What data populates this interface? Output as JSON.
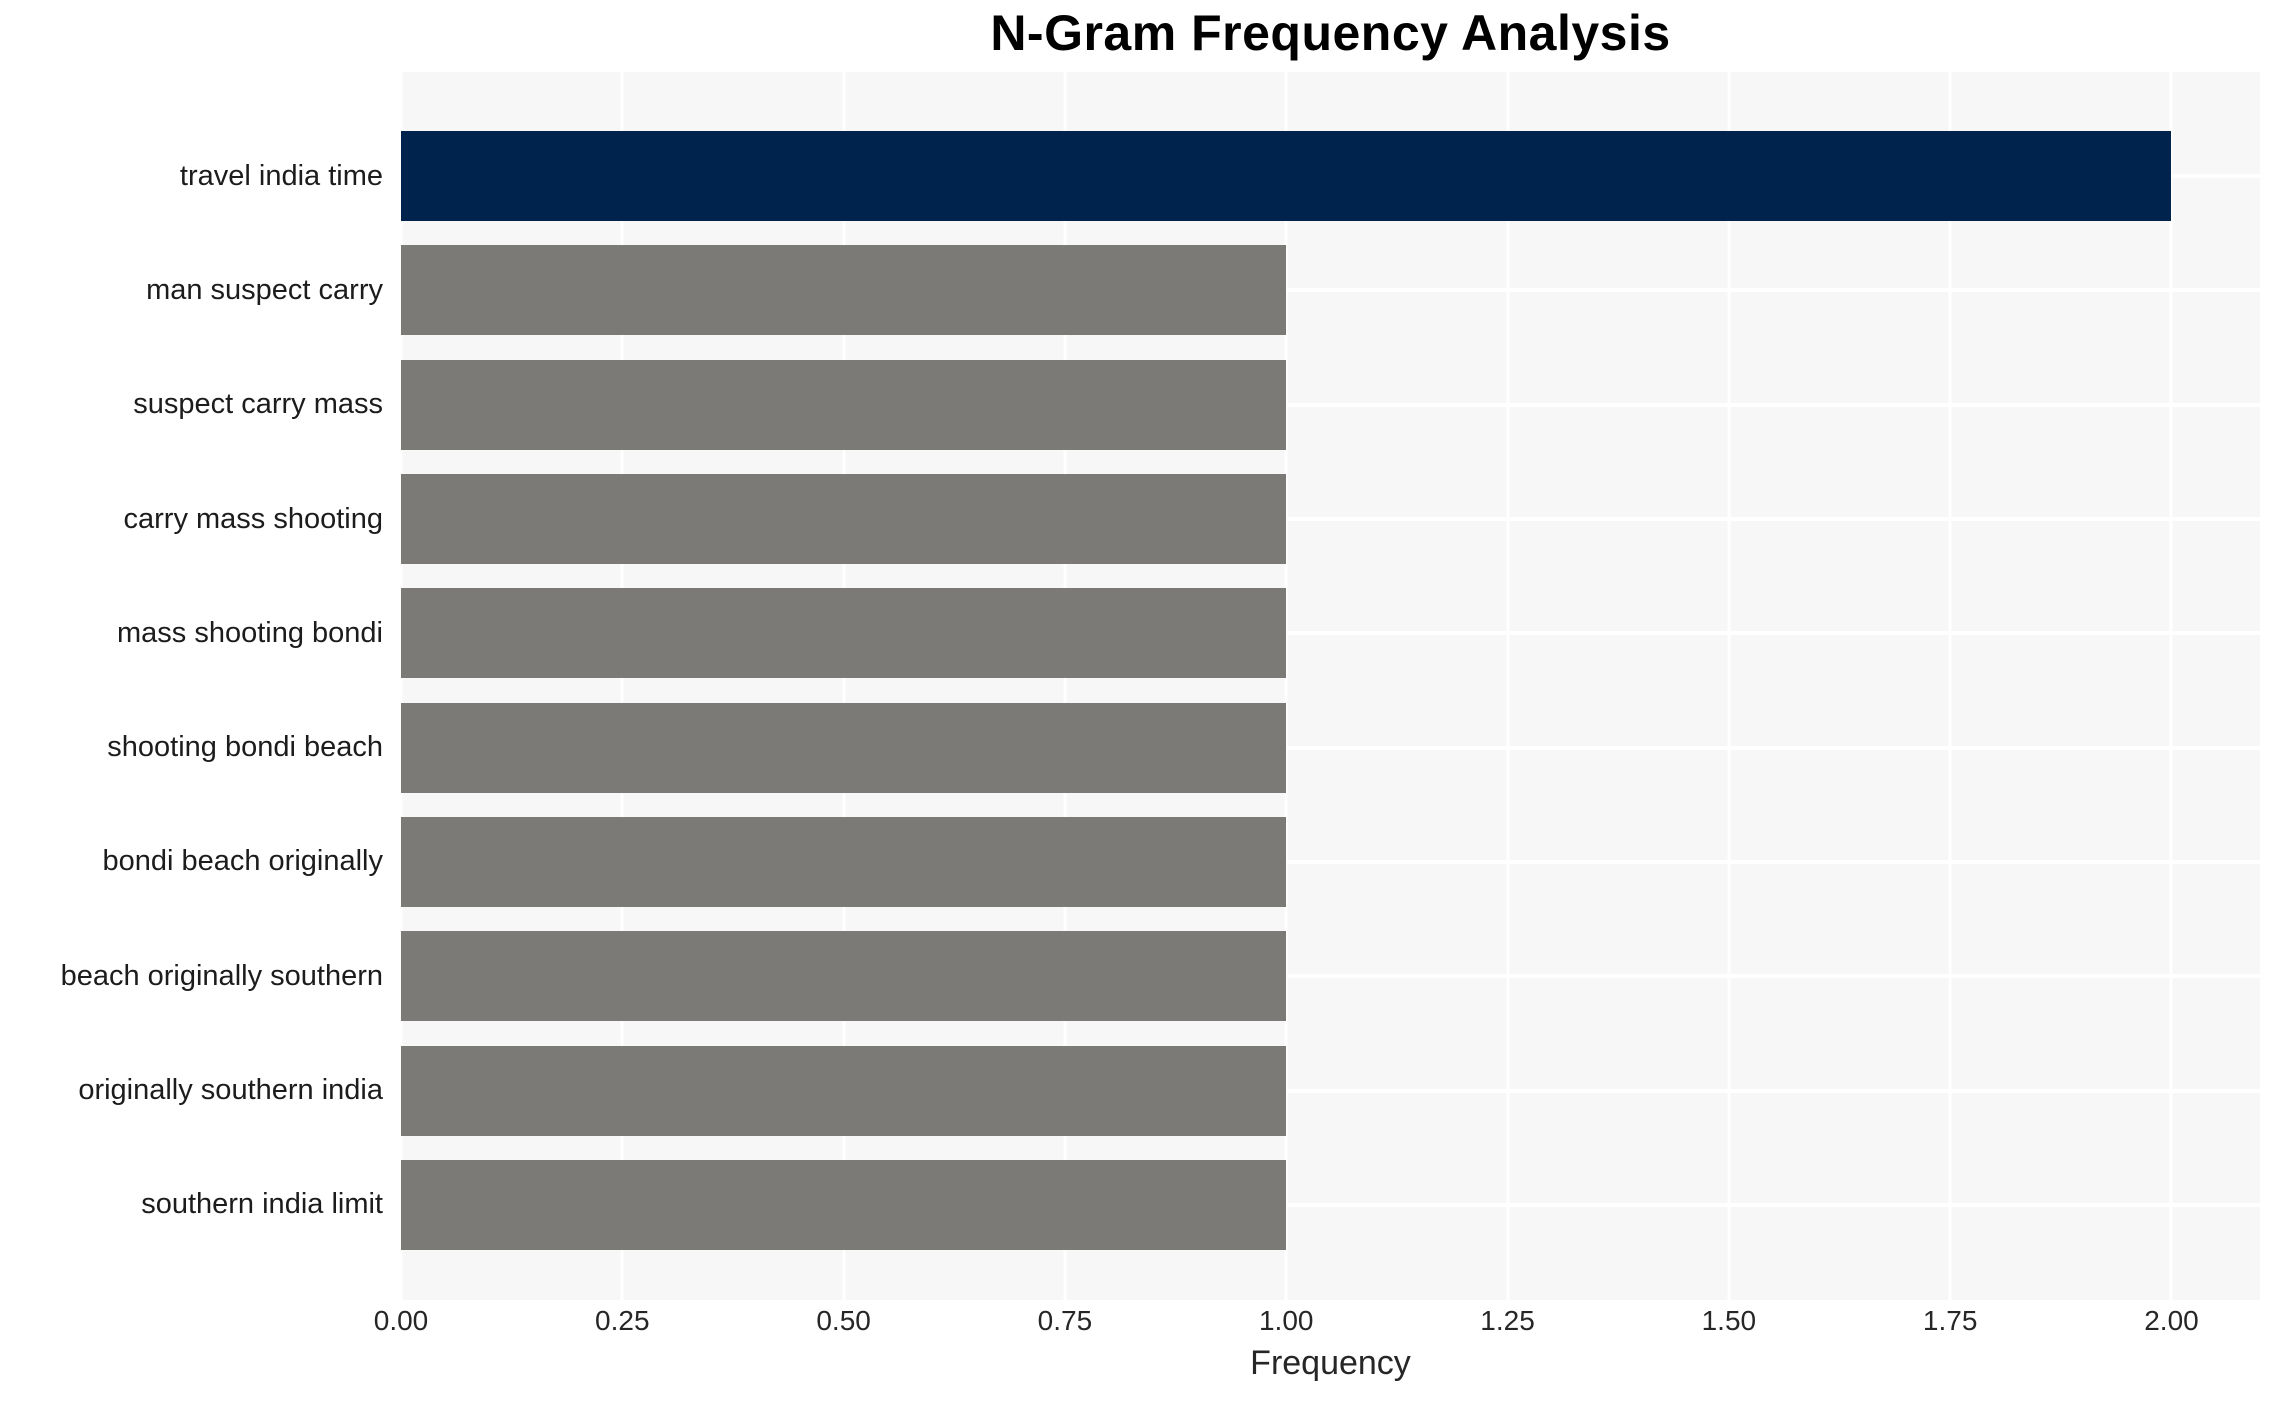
{
  "chart_data": {
    "type": "bar",
    "orientation": "horizontal",
    "title": "N-Gram Frequency Analysis",
    "xlabel": "Frequency",
    "ylabel": "",
    "categories": [
      "travel india time",
      "man suspect carry",
      "suspect carry mass",
      "carry mass shooting",
      "mass shooting bondi",
      "shooting bondi beach",
      "bondi beach originally",
      "beach originally southern",
      "originally southern india",
      "southern india limit"
    ],
    "values": [
      2,
      1,
      1,
      1,
      1,
      1,
      1,
      1,
      1,
      1
    ],
    "highlight_index": 0,
    "xlim": [
      0,
      2.1
    ],
    "x_ticks": [
      0.0,
      0.25,
      0.5,
      0.75,
      1.0,
      1.25,
      1.5,
      1.75,
      2.0
    ],
    "x_tick_labels": [
      "0.00",
      "0.25",
      "0.50",
      "0.75",
      "1.00",
      "1.25",
      "1.50",
      "1.75",
      "2.00"
    ],
    "grid": true,
    "legend": false,
    "colors": {
      "highlight_bar": "#00234d",
      "default_bar": "#7b7a76",
      "plot_background": "#f7f7f7",
      "gridline": "#ffffff",
      "title_text": "#000000",
      "label_text": "#1c1c1c",
      "tick_text": "#262626"
    }
  }
}
